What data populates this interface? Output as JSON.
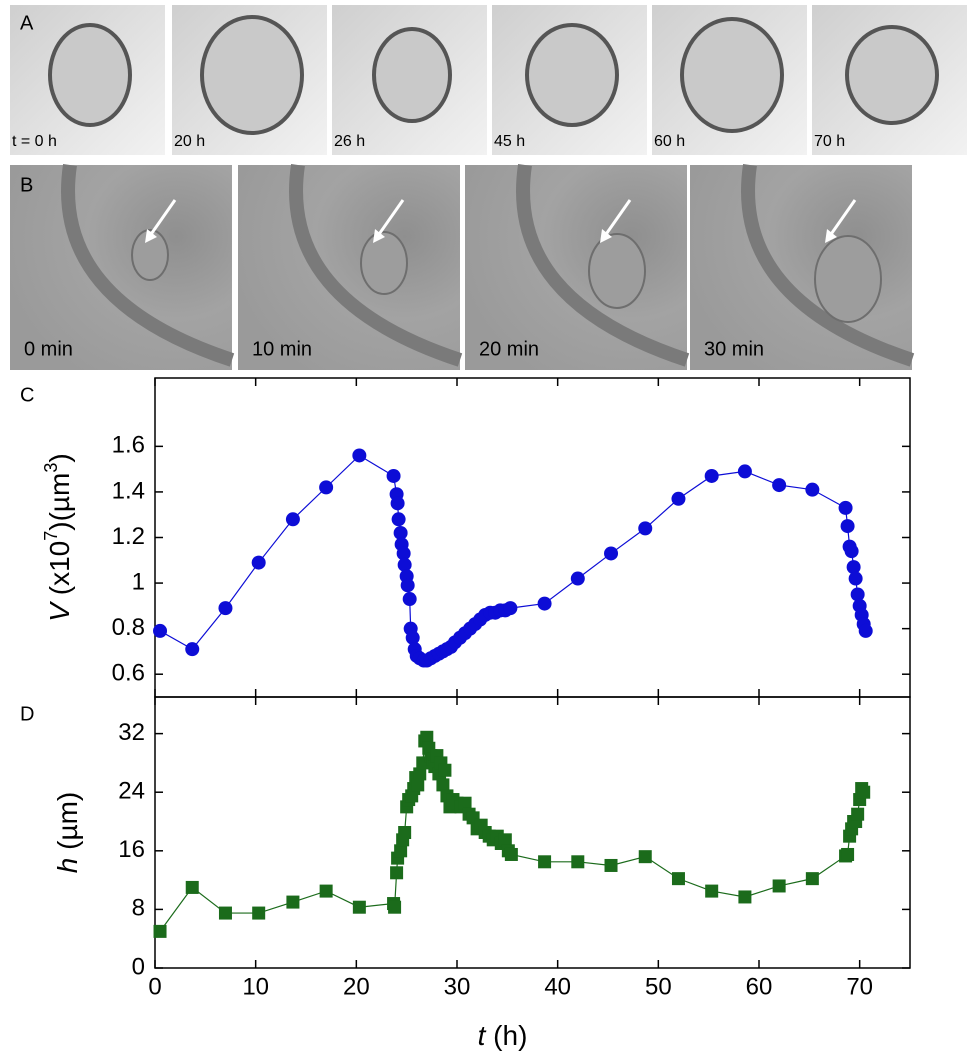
{
  "panels": {
    "a": {
      "label": "A",
      "times": [
        "t = 0 h",
        "20 h",
        "26 h",
        "45 h",
        "60 h",
        "70 h"
      ]
    },
    "b": {
      "label": "B",
      "times": [
        "0 min",
        "10 min",
        "20 min",
        "30 min"
      ]
    }
  },
  "chart_data": [
    {
      "type": "line",
      "label": "C",
      "ylabel_parts": [
        "V",
        " (x10",
        "7",
        ")(µm",
        "3",
        ")"
      ],
      "x": [
        0.5,
        3.7,
        7,
        10.3,
        13.7,
        17,
        20.3,
        23.7,
        24,
        24.1,
        24.2,
        24.4,
        24.5,
        24.7,
        24.8,
        25,
        25.1,
        25.3,
        25.4,
        25.6,
        25.8,
        26,
        26.3,
        26.7,
        27,
        27.4,
        27.8,
        28.2,
        28.6,
        29,
        29.4,
        29.8,
        30.3,
        30.8,
        31.3,
        31.8,
        32.3,
        32.8,
        33.3,
        33.8,
        34.3,
        34.8,
        35.3,
        38.7,
        42,
        45.3,
        48.7,
        52,
        55.3,
        58.6,
        62,
        65.3,
        68.6,
        68.8,
        69,
        69.2,
        69.4,
        69.6,
        69.8,
        70,
        70.2,
        70.4,
        70.6
      ],
      "series": [
        {
          "name": "V",
          "color": "#0d0dd6",
          "marker": "circle",
          "values": [
            0.79,
            0.71,
            0.89,
            1.09,
            1.28,
            1.42,
            1.56,
            1.47,
            1.39,
            1.35,
            1.28,
            1.22,
            1.17,
            1.13,
            1.08,
            1.03,
            0.99,
            0.93,
            0.8,
            0.76,
            0.71,
            0.68,
            0.67,
            0.66,
            0.66,
            0.67,
            0.68,
            0.69,
            0.7,
            0.71,
            0.72,
            0.74,
            0.76,
            0.78,
            0.8,
            0.82,
            0.84,
            0.86,
            0.87,
            0.87,
            0.88,
            0.88,
            0.89,
            0.91,
            1.02,
            1.13,
            1.24,
            1.37,
            1.47,
            1.49,
            1.43,
            1.41,
            1.33,
            1.25,
            1.16,
            1.14,
            1.07,
            1.02,
            0.95,
            0.9,
            0.86,
            0.82,
            0.79
          ]
        }
      ],
      "xlim": [
        0,
        75
      ],
      "ylim": [
        0.5,
        1.9
      ],
      "yticks": [
        0.6,
        0.8,
        1,
        1.2,
        1.4,
        1.6
      ]
    },
    {
      "type": "line",
      "label": "D",
      "ylabel_parts": [
        "h",
        " (µm)"
      ],
      "xlabel_parts": [
        "t",
        " (h)"
      ],
      "x": [
        0.5,
        3.7,
        7,
        10.3,
        13.7,
        17,
        20.3,
        23.7,
        23.8,
        24,
        24.1,
        24.4,
        24.6,
        24.8,
        25,
        25.2,
        25.5,
        25.7,
        25.9,
        26.1,
        26.3,
        26.6,
        26.8,
        27,
        27.2,
        27.4,
        27.6,
        27.8,
        28,
        28.2,
        28.4,
        28.6,
        28.8,
        29,
        29.3,
        29.6,
        30,
        30.4,
        30.8,
        31.2,
        31.6,
        32,
        32.4,
        32.8,
        33.2,
        33.6,
        34,
        34.4,
        34.8,
        35.1,
        35.4,
        38.7,
        42,
        45.3,
        48.7,
        52,
        55.3,
        58.6,
        62,
        65.3,
        68.6,
        68.8,
        69,
        69.2,
        69.4,
        69.6,
        69.8,
        70,
        70.2,
        70.4
      ],
      "series": [
        {
          "name": "h",
          "color": "#1b6b1b",
          "marker": "square",
          "values": [
            5,
            11,
            7.5,
            7.5,
            9,
            10.5,
            8.3,
            8.8,
            8.3,
            13,
            15,
            16,
            17.5,
            18.5,
            22,
            23,
            23.5,
            24.5,
            26,
            25,
            26.5,
            28,
            31,
            31.5,
            30,
            29,
            28.5,
            27.5,
            29,
            26.5,
            28,
            25,
            27,
            23.5,
            22,
            23,
            22.5,
            22,
            22.5,
            21,
            20.5,
            19,
            19.5,
            18.5,
            18,
            17.5,
            18,
            17,
            17.5,
            16,
            15.5,
            14.5,
            14.5,
            14,
            15.2,
            12.2,
            10.5,
            9.7,
            11.2,
            12.2,
            15.3,
            15.5,
            18,
            19,
            20,
            20,
            21,
            23,
            24.5,
            24
          ]
        }
      ],
      "xlim": [
        0,
        75
      ],
      "ylim": [
        0,
        37
      ],
      "xticks": [
        0,
        10,
        20,
        30,
        40,
        50,
        60,
        70
      ],
      "yticks": [
        0,
        8,
        16,
        24,
        32
      ]
    }
  ]
}
